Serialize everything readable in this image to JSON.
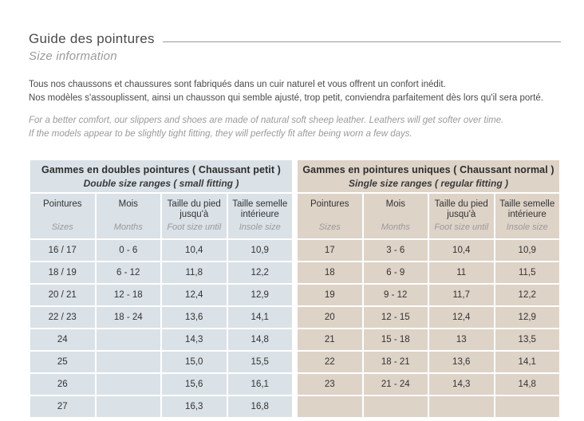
{
  "page": {
    "title": "Guide des pointures",
    "subtitle": "Size information",
    "intro_fr": [
      "Tous nos chaussons et chaussures sont fabriqués dans un cuir naturel et vous offrent un confort inédit.",
      "Nos modèles s'assouplissent, ainsi un chausson qui semble ajusté, trop petit, conviendra parfaitement dès lors qu'il sera porté."
    ],
    "intro_en": [
      "For a better comfort, our slippers and shoes are made of natural soft sheep leather. Leathers will get softer over time.",
      "If the models appear to be slightly tight fitting, they will perfectly fit after being worn a few days."
    ]
  },
  "tables": [
    {
      "title_fr": "Gammes en doubles pointures ( Chaussant petit )",
      "title_en": "Double size ranges ( small fitting )",
      "columns": [
        {
          "fr": "Pointures",
          "en": "Sizes"
        },
        {
          "fr": "Mois",
          "en": "Months"
        },
        {
          "fr": "Taille du pied jusqu'à",
          "en": "Foot size until"
        },
        {
          "fr": "Taille semelle intérieure",
          "en": "Insole size"
        }
      ],
      "rows": [
        [
          "16 / 17",
          "0 - 6",
          "10,4",
          "10,9"
        ],
        [
          "18 / 19",
          "6 - 12",
          "11,8",
          "12,2"
        ],
        [
          "20 / 21",
          "12 - 18",
          "12,4",
          "12,9"
        ],
        [
          "22 / 23",
          "18 - 24",
          "13,6",
          "14,1"
        ],
        [
          "24",
          "",
          "14,3",
          "14,8"
        ],
        [
          "25",
          "",
          "15,0",
          "15,5"
        ],
        [
          "26",
          "",
          "15,6",
          "16,1"
        ],
        [
          "27",
          "",
          "16,3",
          "16,8"
        ]
      ]
    },
    {
      "title_fr": "Gammes en pointures uniques ( Chaussant normal )",
      "title_en": "Single size ranges ( regular fitting )",
      "columns": [
        {
          "fr": "Pointures",
          "en": "Sizes"
        },
        {
          "fr": "Mois",
          "en": "Months"
        },
        {
          "fr": "Taille du pied jusqu'à",
          "en": "Foot size until"
        },
        {
          "fr": "Taille semelle intérieure",
          "en": "Insole size"
        }
      ],
      "rows": [
        [
          "17",
          "3 - 6",
          "10,4",
          "10,9"
        ],
        [
          "18",
          "6 - 9",
          "11",
          "11,5"
        ],
        [
          "19",
          "9 - 12",
          "11,7",
          "12,2"
        ],
        [
          "20",
          "12 - 15",
          "12,4",
          "12,9"
        ],
        [
          "21",
          "15 - 18",
          "13",
          "13,5"
        ],
        [
          "22",
          "18 - 21",
          "13,6",
          "14,1"
        ],
        [
          "23",
          "21 - 24",
          "14,3",
          "14,8"
        ],
        [
          "",
          "",
          "",
          ""
        ]
      ]
    }
  ],
  "colors": {
    "left_table_bg": "#dae1e7",
    "right_table_bg": "#ded3c7",
    "text_dark": "#4a4a4a",
    "text_gray": "#9a9a9a",
    "rule": "#9b9b9b"
  }
}
